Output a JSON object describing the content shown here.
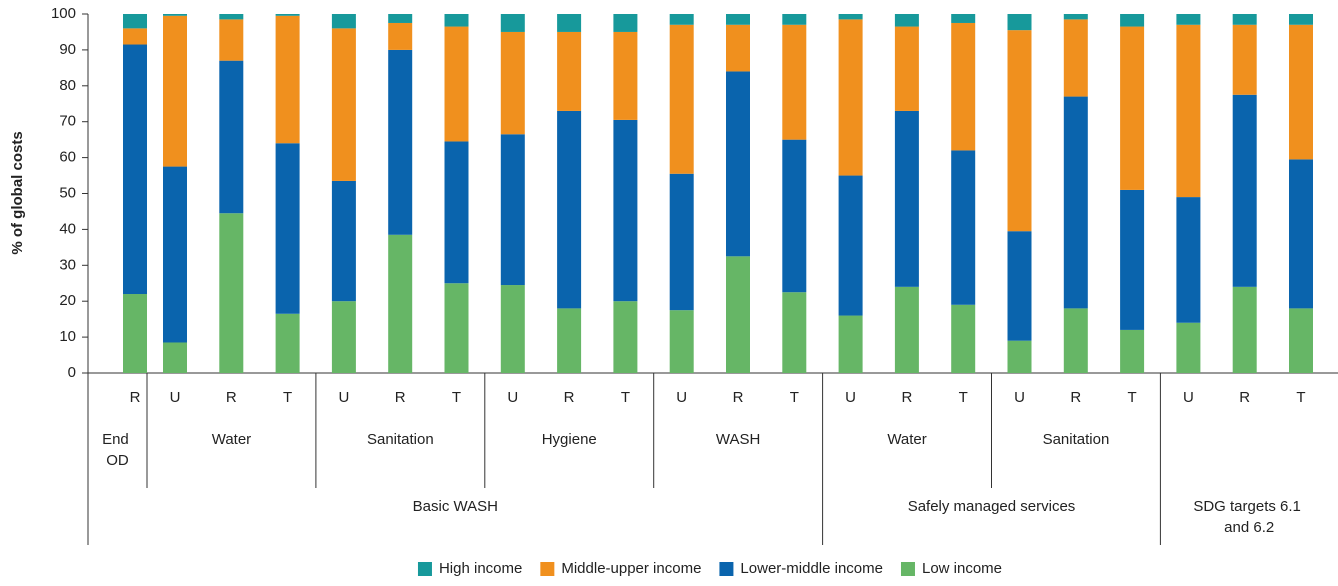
{
  "chart_data": {
    "type": "bar",
    "stacked": true,
    "y_label": "% of global costs",
    "ylim": [
      0,
      100
    ],
    "yticks": [
      0,
      10,
      20,
      30,
      40,
      50,
      60,
      70,
      80,
      90,
      100
    ],
    "grid": false,
    "legend": "bottom",
    "category_groups": [
      {
        "label": "Basic WASH",
        "groups": [
          {
            "label": "End OD",
            "categories": [
              "R"
            ]
          },
          {
            "label": "Water",
            "categories": [
              "U",
              "R",
              "T"
            ]
          },
          {
            "label": "Sanitation",
            "categories": [
              "U",
              "R",
              "T"
            ]
          },
          {
            "label": "Hygiene",
            "categories": [
              "U",
              "R",
              "T"
            ]
          },
          {
            "label": "WASH",
            "categories": [
              "U",
              "R",
              "T"
            ]
          }
        ]
      },
      {
        "label": "Safely managed services",
        "groups": [
          {
            "label": "Water",
            "categories": [
              "U",
              "R",
              "T"
            ]
          },
          {
            "label": "Sanitation",
            "categories": [
              "U",
              "R",
              "T"
            ]
          }
        ]
      },
      {
        "label": "SDG targets 6.1 and 6.2",
        "groups": [
          {
            "categories": [
              "U",
              "R",
              "T"
            ]
          }
        ]
      }
    ],
    "series": [
      {
        "name": "High income",
        "color": "#17999b",
        "values": [
          4,
          0.5,
          1.5,
          0.5,
          4,
          2.5,
          3.5,
          5,
          5,
          5,
          3,
          3,
          3,
          1.5,
          3.5,
          2.5,
          4.5,
          1.5,
          3.5,
          3,
          3,
          3
        ]
      },
      {
        "name": "Middle-upper income",
        "color": "#f0901e",
        "values": [
          4.5,
          42,
          11.5,
          35.5,
          42.5,
          7.5,
          32,
          28.5,
          22,
          24.5,
          41.5,
          13,
          32,
          43.5,
          23.5,
          35.5,
          56,
          21.5,
          45.5,
          48,
          19.5,
          37.5
        ]
      },
      {
        "name": "Lower-middle income",
        "color": "#0a64ad",
        "values": [
          69.5,
          49,
          42.5,
          47.5,
          33.5,
          51.5,
          39.5,
          42,
          55,
          50.5,
          38,
          51.5,
          42.5,
          39,
          49,
          43,
          30.5,
          59,
          39,
          35,
          53.5,
          41.5
        ]
      },
      {
        "name": "Low income",
        "color": "#66b666",
        "values": [
          22,
          8.5,
          44.5,
          16.5,
          20,
          38.5,
          25,
          24.5,
          18,
          20,
          17.5,
          32.5,
          22.5,
          16,
          24,
          19,
          9,
          18,
          12,
          14,
          24,
          18
        ]
      }
    ]
  }
}
